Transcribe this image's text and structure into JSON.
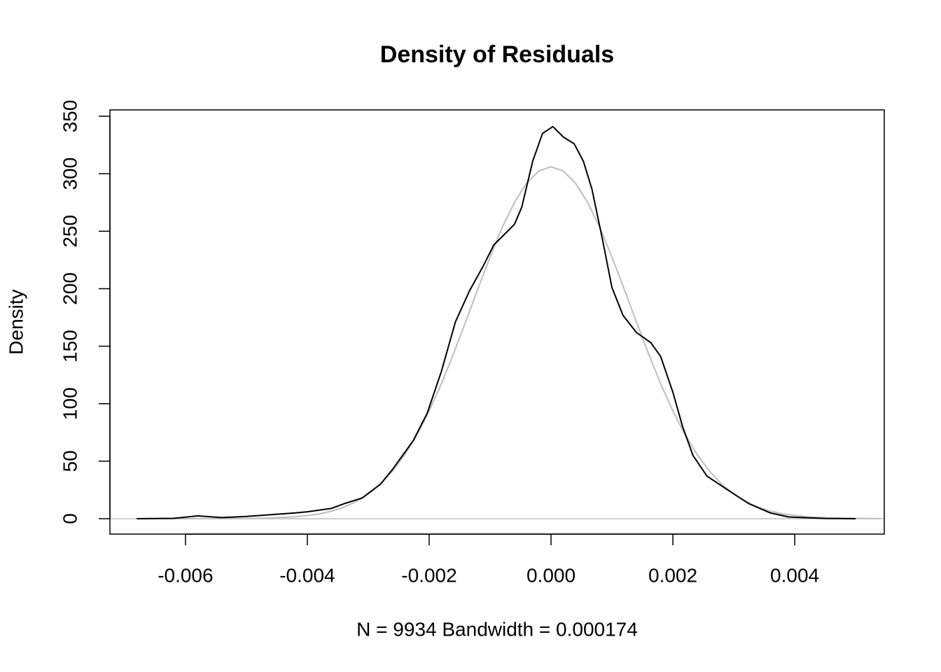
{
  "chart_data": {
    "type": "line",
    "title": "Density of Residuals",
    "x_label": "N = 9934   Bandwidth = 0.000174",
    "y_label": "Density",
    "xlim": [
      -0.00724,
      0.00547
    ],
    "ylim": [
      -13.4,
      355.5
    ],
    "xticks": [
      -0.006,
      -0.004,
      -0.002,
      {
        "value": 0,
        "label": "0.000"
      },
      0.002,
      0.004
    ],
    "yticks": [
      0,
      50,
      100,
      150,
      200,
      250,
      300,
      350
    ],
    "reference_line": {
      "value": 0,
      "color": "#bebebe"
    },
    "series": [
      {
        "color": "#000000",
        "x": [
          -0.0068,
          -0.0062,
          -0.0058,
          -0.0054,
          -0.005,
          -0.0046,
          -0.0042,
          -0.004,
          -0.0036,
          -0.0034,
          -0.0031,
          -0.0028,
          -0.0026,
          -0.00226,
          -0.00203,
          -0.0018,
          -0.00157,
          -0.00134,
          -0.00111,
          -0.00094,
          -0.00077,
          -0.0006,
          -0.00048,
          -0.0003,
          -0.00014,
          3e-05,
          0.0002,
          0.00038,
          0.00053,
          0.00067,
          0.00084,
          0.001,
          0.00118,
          0.0014,
          0.00164,
          0.0018,
          0.002,
          0.00216,
          0.00233,
          0.00256,
          0.0029,
          0.00325,
          0.0036,
          0.0039,
          0.0045,
          0.005
        ],
        "values": [
          0,
          0.3,
          2.4,
          1,
          2,
          3.5,
          5,
          6,
          9,
          13,
          18,
          30,
          43,
          68,
          92,
          128,
          171,
          198,
          220,
          238,
          247,
          256,
          271,
          311,
          335,
          341,
          332,
          326,
          311,
          287,
          244,
          201,
          177,
          162,
          153,
          141,
          110,
          80,
          55,
          37,
          25,
          13,
          5,
          1.5,
          0.2,
          0
        ]
      },
      {
        "color": "#bebebe",
        "x": [
          -0.0066,
          -0.006,
          -0.0054,
          -0.005,
          -0.0046,
          -0.0042,
          -0.004,
          -0.0038,
          -0.0036,
          -0.0034,
          -0.0032,
          -0.003,
          -0.0028,
          -0.0026,
          -0.0024,
          -0.0022,
          -0.002,
          -0.0018,
          -0.0016,
          -0.0014,
          -0.0012,
          -0.001,
          -0.0008,
          -0.0006,
          -0.0004,
          -0.0002,
          0,
          0.0002,
          0.0004,
          0.0006,
          0.0008,
          0.001,
          0.0012,
          0.0014,
          0.0016,
          0.0018,
          0.002,
          0.0022,
          0.0024,
          0.0026,
          0.0028,
          0.003,
          0.0032,
          0.0034,
          0.0036,
          0.0038,
          0.0042,
          0.0046,
          0.005,
          0.0054
        ],
        "values": [
          0,
          0,
          0.05,
          0.19,
          0.58,
          1.65,
          2.7,
          4.2,
          6.6,
          10,
          14.8,
          21.4,
          30.1,
          41.4,
          55.7,
          73.1,
          93.7,
          117.3,
          143.5,
          171.4,
          199.8,
          227.6,
          253.4,
          275.1,
          291.9,
          302.4,
          306,
          302.4,
          291.9,
          275.1,
          253.4,
          227.6,
          199.8,
          171.4,
          143.5,
          117.3,
          93.7,
          73.1,
          55.7,
          41.4,
          30.1,
          21.4,
          14.8,
          10,
          6.6,
          4.2,
          1.65,
          0.58,
          0.19,
          0.05
        ]
      }
    ]
  }
}
